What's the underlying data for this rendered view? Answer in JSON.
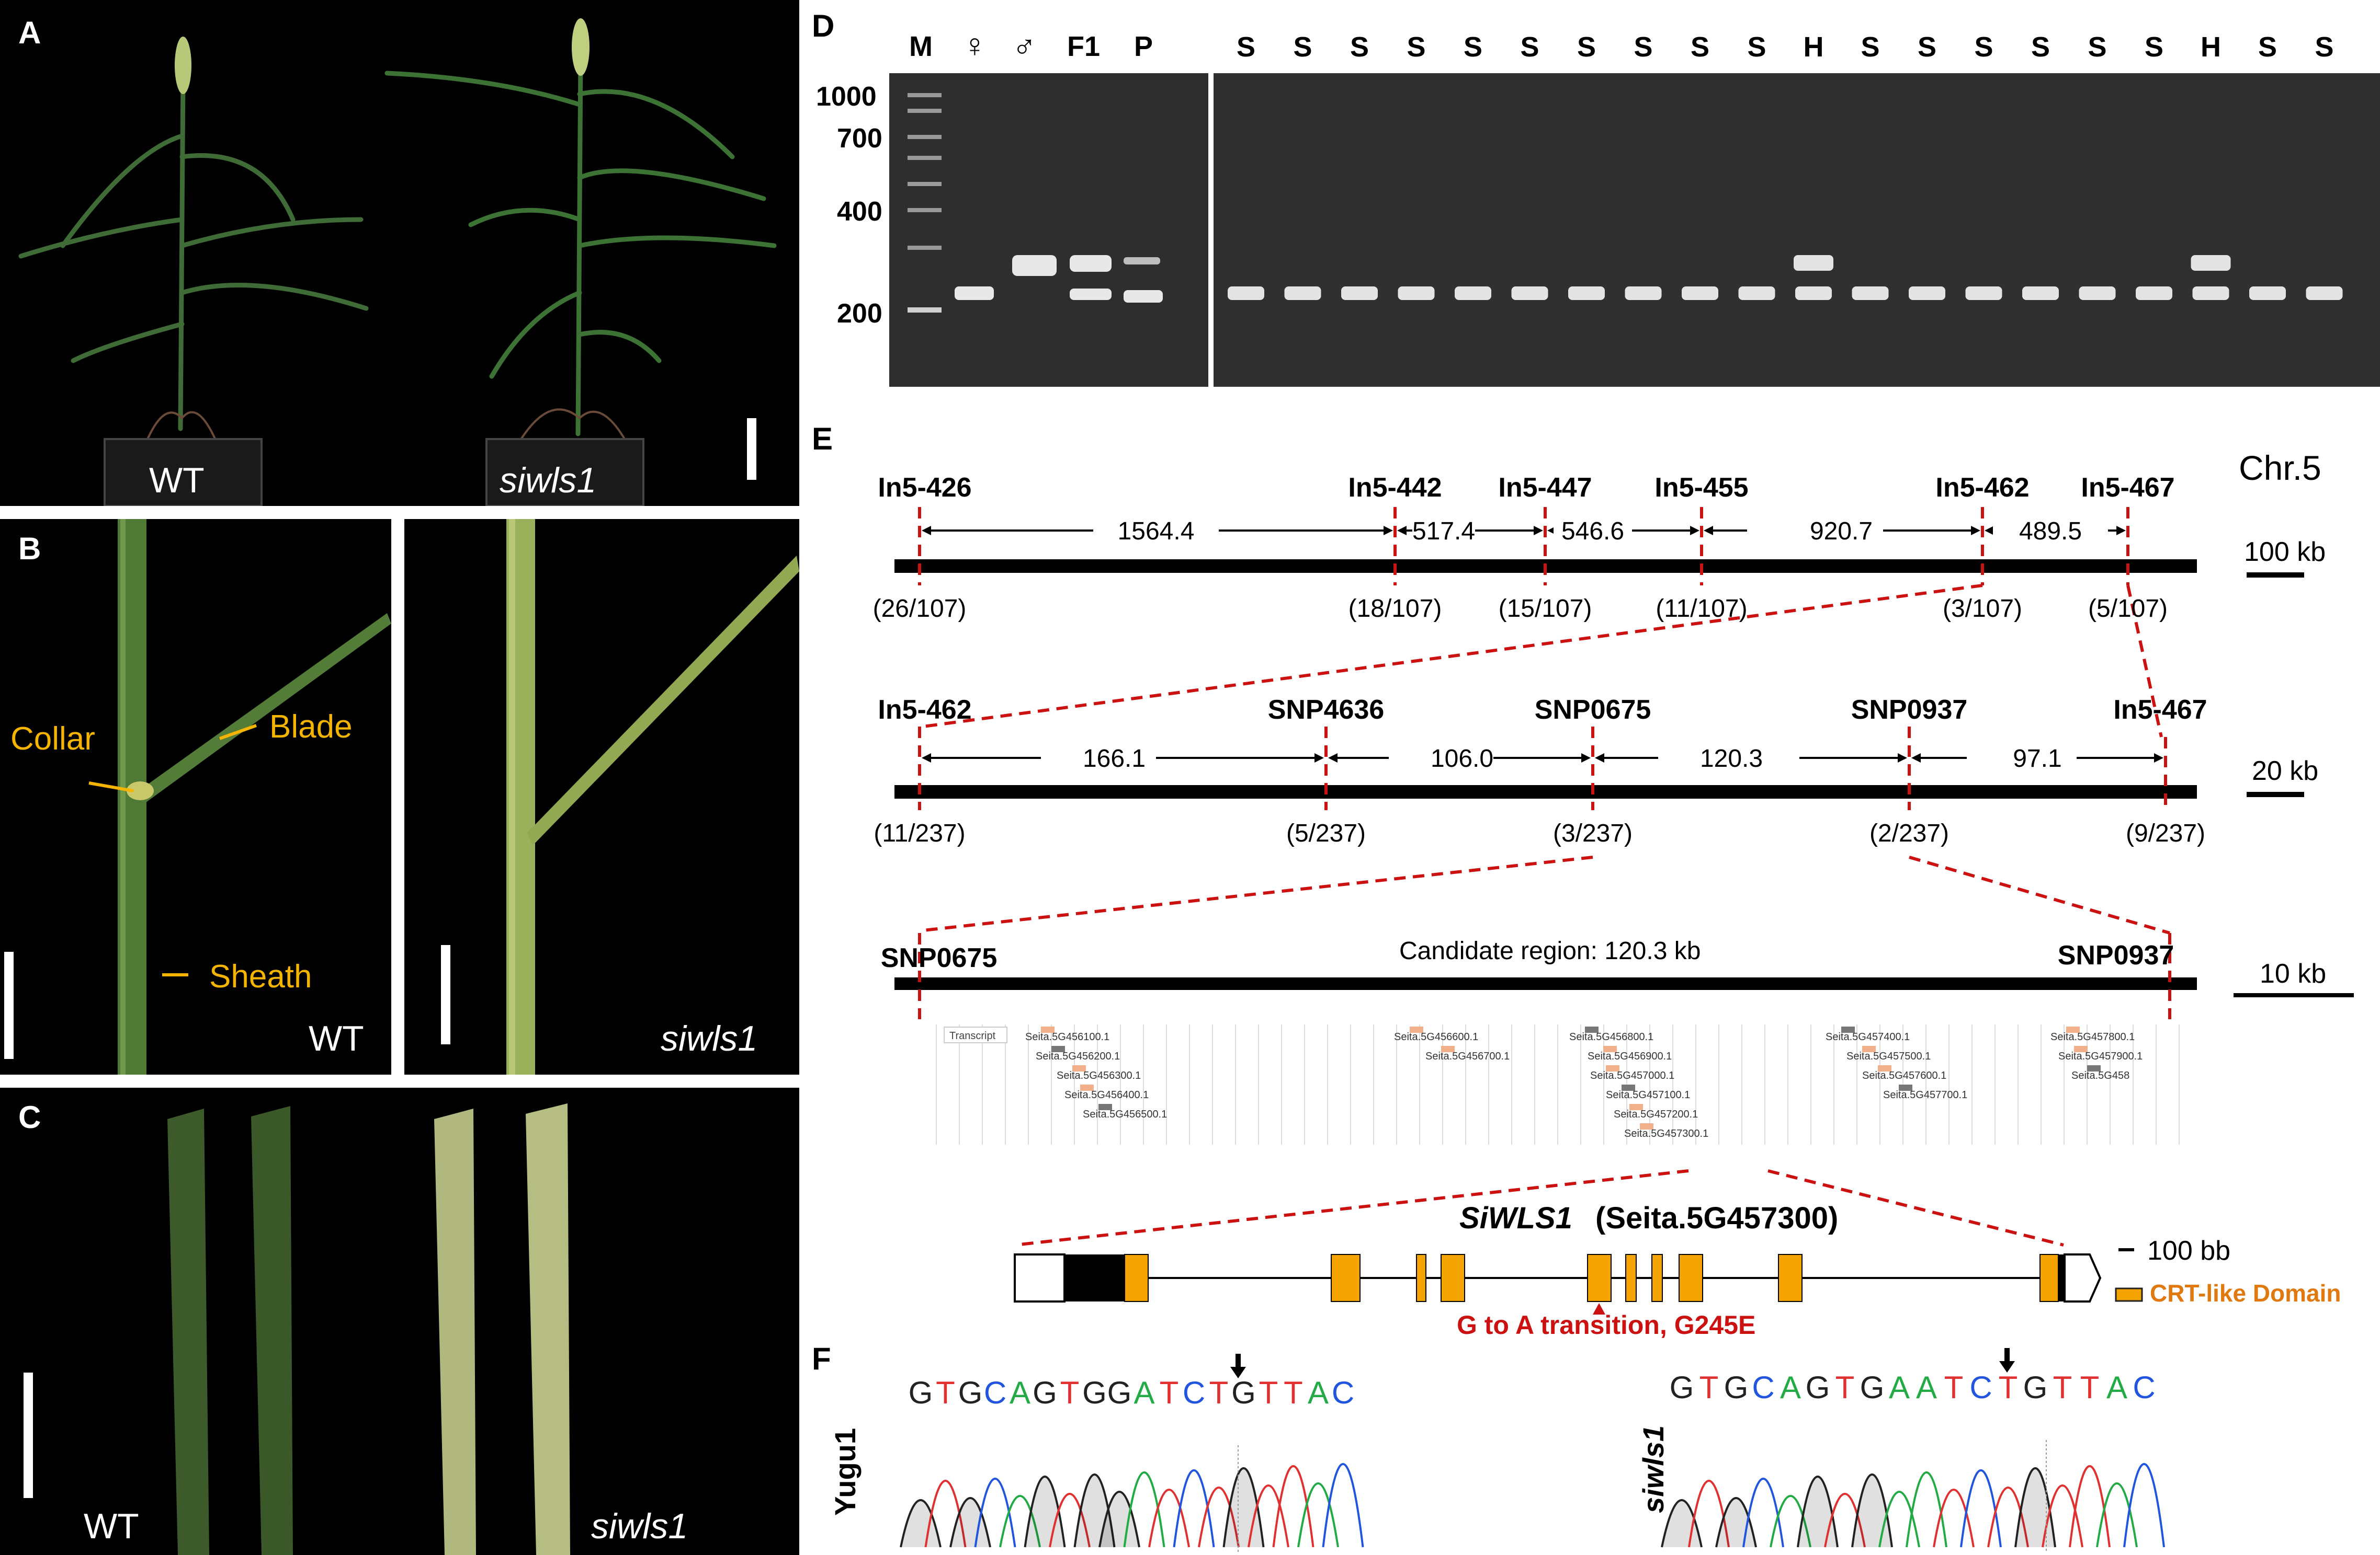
{
  "panels": {
    "a": {
      "letter": "A",
      "wt": "WT",
      "mut": "siwls1"
    },
    "b": {
      "letter": "B",
      "collar": "Collar",
      "blade": "Blade",
      "sheath": "Sheath",
      "wt": "WT",
      "mut": "siwls1"
    },
    "c": {
      "letter": "C",
      "wt": "WT",
      "mut": "siwls1"
    },
    "d": {
      "letter": "D",
      "lanes_left": [
        "M",
        "♀",
        "♂",
        "F1",
        "P"
      ],
      "lanes_right": [
        "S",
        "S",
        "S",
        "S",
        "S",
        "S",
        "S",
        "S",
        "S",
        "S",
        "H",
        "S",
        "S",
        "S",
        "S",
        "S",
        "S",
        "H",
        "S",
        "S"
      ],
      "ladder": [
        "1000",
        "700",
        "400",
        "200"
      ]
    },
    "e": {
      "letter": "E",
      "chr": "Chr.5",
      "row1": {
        "markers": [
          "In5-426",
          "In5-442",
          "In5-447",
          "In5-455",
          "In5-462",
          "In5-467"
        ],
        "distances": [
          "1564.4",
          "517.4",
          "546.6",
          "920.7",
          "489.5"
        ],
        "recomb": [
          "(26/107)",
          "(18/107)",
          "(15/107)",
          "(11/107)",
          "(3/107)",
          "(5/107)"
        ],
        "scale": "100 kb"
      },
      "row2": {
        "markers": [
          "In5-462",
          "SNP4636",
          "SNP0675",
          "SNP0937",
          "In5-467"
        ],
        "distances": [
          "166.1",
          "106.0",
          "120.3",
          "97.1"
        ],
        "recomb": [
          "(11/237)",
          "(5/237)",
          "(3/237)",
          "(2/237)",
          "(9/237)"
        ],
        "scale": "20 kb"
      },
      "row3": {
        "left": "SNP0675",
        "right": "SNP0937",
        "candidate": "Candidate region: 120.3 kb",
        "scale": "10 kb"
      },
      "transcript_label": "Transcript",
      "genes": [
        "Seita.5G456100.1",
        "Seita.5G456200.1",
        "Seita.5G456300.1",
        "Seita.5G456400.1",
        "Seita.5G456500.1",
        "Seita.5G456600.1",
        "Seita.5G456700.1",
        "Seita.5G456800.1",
        "Seita.5G456900.1",
        "Seita.5G457000.1",
        "Seita.5G457100.1",
        "Seita.5G457200.1",
        "Seita.5G457300.1",
        "Seita.5G457400.1",
        "Seita.5G457500.1",
        "Seita.5G457600.1",
        "Seita.5G457700.1",
        "Seita.5G457800.1",
        "Seita.5G457900.1",
        "Seita.5G458"
      ],
      "gene_italic": "SiWLS1",
      "gene_id": "(Seita.5G457300)",
      "gene_scale": "100 bb",
      "mutation": "G to A transition, G245E",
      "legend": "CRT-like Domain"
    },
    "f": {
      "letter": "F",
      "left_label": "Yugu1",
      "right_label": "siwls1",
      "left_seq": [
        "G",
        "T",
        "G",
        "C",
        "A",
        "G",
        "T",
        "G",
        "G",
        "A",
        "T",
        "C",
        "T",
        "G",
        "T",
        "T",
        "A",
        "C"
      ],
      "right_seq": [
        "G",
        "T",
        "G",
        "C",
        "A",
        "G",
        "T",
        "G",
        "A",
        "A",
        "T",
        "C",
        "T",
        "G",
        "T",
        "T",
        "A",
        "C"
      ]
    }
  },
  "colors": {
    "red_dashed": "#cc1111",
    "exon": "#f5a300",
    "legend_text": "#e07a10",
    "annotation": "#f5b400",
    "base_G": "#222222",
    "base_T": "#e03030",
    "base_C": "#2255dd",
    "base_A": "#22aa44"
  }
}
